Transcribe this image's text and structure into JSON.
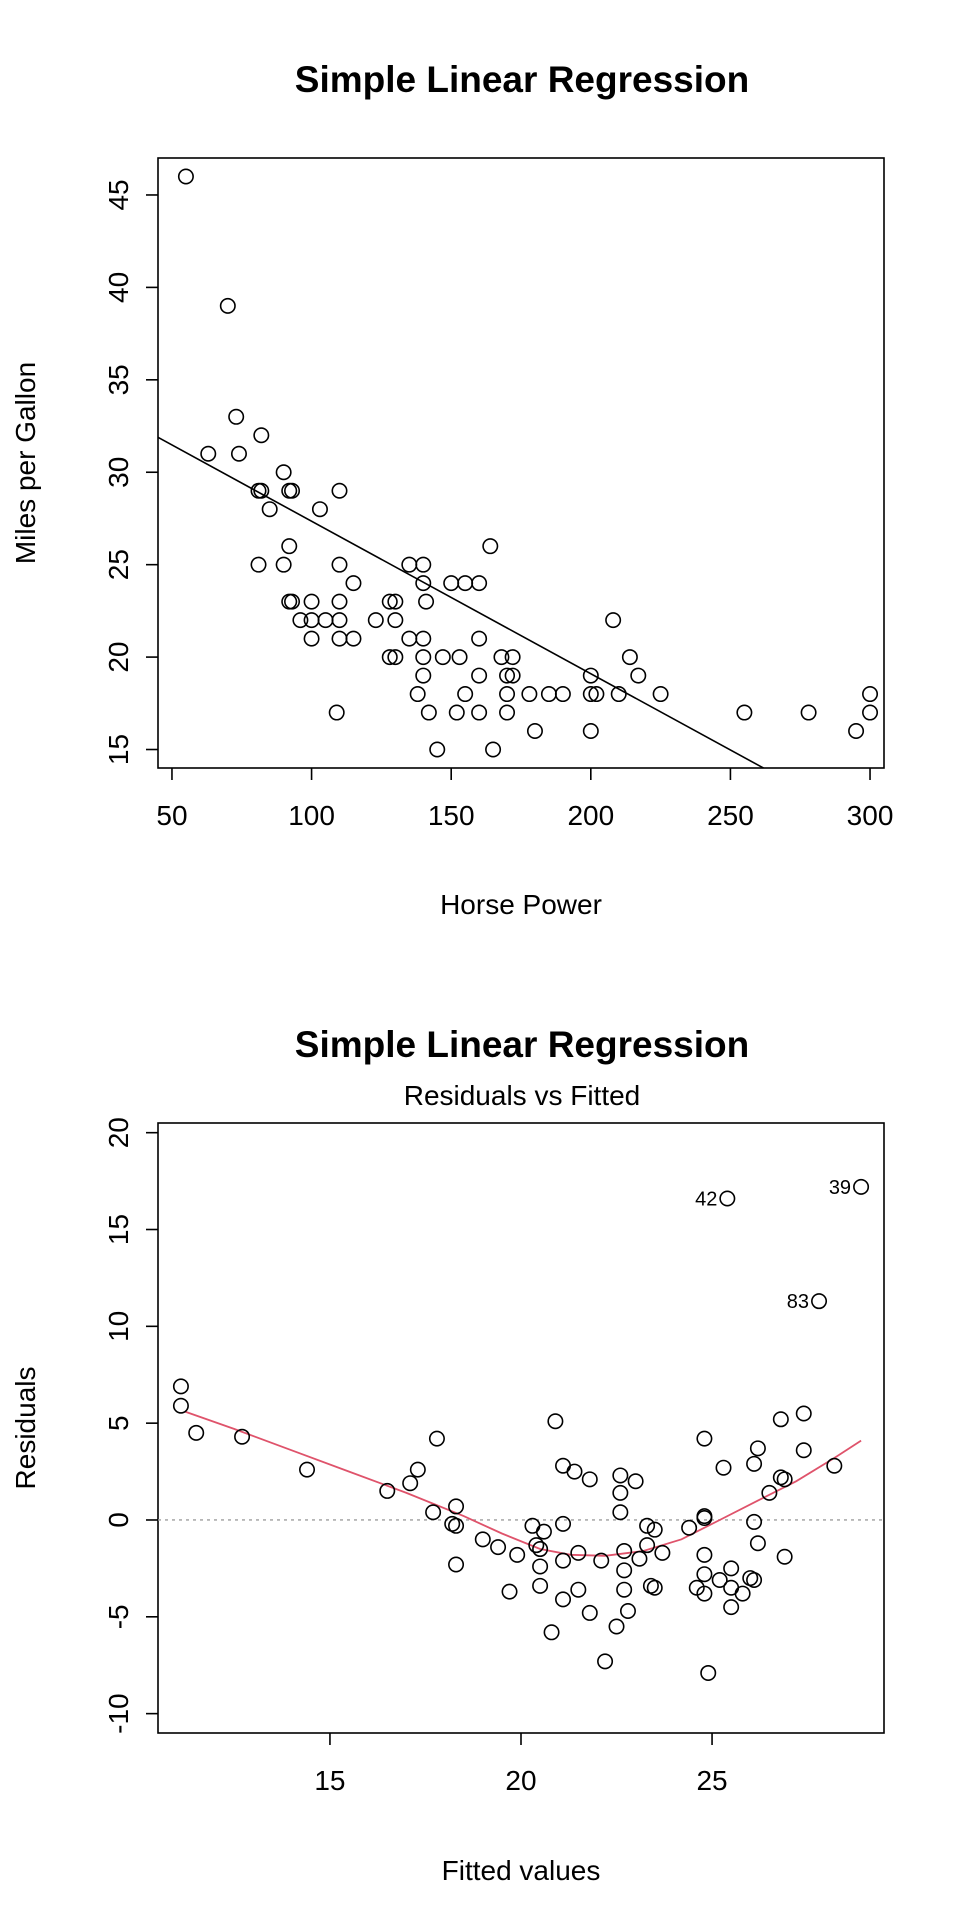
{
  "chart_data": [
    {
      "type": "scatter",
      "title": "Simple Linear Regression",
      "xlabel": "Horse Power",
      "ylabel": "Miles per Gallon",
      "xlim": [
        45,
        305
      ],
      "ylim": [
        14,
        47
      ],
      "xticks": [
        50,
        100,
        150,
        200,
        250,
        300
      ],
      "yticks": [
        15,
        20,
        25,
        30,
        35,
        40,
        45
      ],
      "regression_line": {
        "intercept": 35.6,
        "slope": -0.0825
      },
      "points": [
        [
          55,
          46
        ],
        [
          70,
          39
        ],
        [
          63,
          31
        ],
        [
          73,
          33
        ],
        [
          74,
          31
        ],
        [
          82,
          32
        ],
        [
          90,
          30
        ],
        [
          81,
          29
        ],
        [
          82,
          29
        ],
        [
          92,
          29
        ],
        [
          93,
          29
        ],
        [
          110,
          29
        ],
        [
          85,
          28
        ],
        [
          103,
          28
        ],
        [
          92,
          26
        ],
        [
          164,
          26
        ],
        [
          81,
          25
        ],
        [
          90,
          25
        ],
        [
          110,
          25
        ],
        [
          135,
          25
        ],
        [
          140,
          25
        ],
        [
          92,
          23
        ],
        [
          93,
          23
        ],
        [
          100,
          23
        ],
        [
          110,
          23
        ],
        [
          128,
          23
        ],
        [
          130,
          23
        ],
        [
          141,
          23
        ],
        [
          140,
          24
        ],
        [
          150,
          24
        ],
        [
          155,
          24
        ],
        [
          160,
          24
        ],
        [
          115,
          24
        ],
        [
          96,
          22
        ],
        [
          100,
          22
        ],
        [
          105,
          22
        ],
        [
          110,
          22
        ],
        [
          123,
          22
        ],
        [
          130,
          22
        ],
        [
          208,
          22
        ],
        [
          100,
          21
        ],
        [
          110,
          21
        ],
        [
          115,
          21
        ],
        [
          135,
          21
        ],
        [
          140,
          21
        ],
        [
          160,
          21
        ],
        [
          128,
          20
        ],
        [
          130,
          20
        ],
        [
          140,
          20
        ],
        [
          147,
          20
        ],
        [
          153,
          20
        ],
        [
          168,
          20
        ],
        [
          172,
          20
        ],
        [
          214,
          20
        ],
        [
          140,
          19
        ],
        [
          160,
          19
        ],
        [
          170,
          19
        ],
        [
          172,
          19
        ],
        [
          200,
          19
        ],
        [
          217,
          19
        ],
        [
          138,
          18
        ],
        [
          155,
          18
        ],
        [
          170,
          18
        ],
        [
          178,
          18
        ],
        [
          185,
          18
        ],
        [
          190,
          18
        ],
        [
          200,
          18
        ],
        [
          202,
          18
        ],
        [
          210,
          18
        ],
        [
          225,
          18
        ],
        [
          300,
          18
        ],
        [
          109,
          17
        ],
        [
          142,
          17
        ],
        [
          152,
          17
        ],
        [
          160,
          17
        ],
        [
          170,
          17
        ],
        [
          255,
          17
        ],
        [
          278,
          17
        ],
        [
          300,
          17
        ],
        [
          180,
          16
        ],
        [
          200,
          16
        ],
        [
          295,
          16
        ],
        [
          145,
          15
        ],
        [
          165,
          15
        ]
      ]
    },
    {
      "type": "scatter",
      "title": "Simple Linear Regression",
      "subtitle": "Residuals vs Fitted",
      "xlabel": "Fitted values",
      "ylabel": "Residuals",
      "xlim": [
        10.5,
        29.5
      ],
      "ylim": [
        -11,
        20.5
      ],
      "xticks": [
        15,
        20,
        25
      ],
      "yticks": [
        -10,
        -5,
        0,
        5,
        10,
        15,
        20
      ],
      "reference_line_y": 0,
      "labeled_points": [
        {
          "label": "42",
          "x": 25.4,
          "y": 16.6
        },
        {
          "label": "39",
          "x": 28.9,
          "y": 17.2
        },
        {
          "label": "83",
          "x": 27.8,
          "y": 11.3
        }
      ],
      "smooth_curve": [
        [
          11.2,
          5.6
        ],
        [
          12.5,
          4.7
        ],
        [
          14,
          3.6
        ],
        [
          15.5,
          2.5
        ],
        [
          17,
          1.4
        ],
        [
          18.5,
          0.2
        ],
        [
          19.5,
          -0.7
        ],
        [
          20.5,
          -1.5
        ],
        [
          21.3,
          -1.8
        ],
        [
          22.2,
          -1.85
        ],
        [
          23.2,
          -1.6
        ],
        [
          24.2,
          -1.0
        ],
        [
          25.2,
          0.0
        ],
        [
          26.2,
          1.0
        ],
        [
          27.2,
          2.0
        ],
        [
          28.2,
          3.2
        ],
        [
          28.9,
          4.1
        ]
      ],
      "points": [
        [
          11.1,
          6.9
        ],
        [
          11.1,
          5.9
        ],
        [
          11.5,
          4.5
        ],
        [
          12.7,
          4.3
        ],
        [
          14.4,
          2.6
        ],
        [
          16.5,
          1.5
        ],
        [
          17.1,
          1.9
        ],
        [
          17.3,
          2.6
        ],
        [
          17.7,
          0.4
        ],
        [
          17.8,
          4.2
        ],
        [
          18.2,
          -0.2
        ],
        [
          18.3,
          0.7
        ],
        [
          18.3,
          -0.3
        ],
        [
          18.3,
          -2.3
        ],
        [
          19.0,
          -1.0
        ],
        [
          19.4,
          -1.4
        ],
        [
          19.7,
          -3.7
        ],
        [
          19.9,
          -1.8
        ],
        [
          20.3,
          -0.3
        ],
        [
          20.4,
          -1.3
        ],
        [
          20.5,
          -1.5
        ],
        [
          20.5,
          -2.4
        ],
        [
          20.5,
          -3.4
        ],
        [
          20.6,
          -0.6
        ],
        [
          20.8,
          -5.8
        ],
        [
          20.9,
          5.1
        ],
        [
          21.1,
          2.8
        ],
        [
          21.1,
          -0.2
        ],
        [
          21.1,
          -2.1
        ],
        [
          21.1,
          -4.1
        ],
        [
          21.4,
          2.5
        ],
        [
          21.5,
          -1.7
        ],
        [
          21.5,
          -3.6
        ],
        [
          21.8,
          2.1
        ],
        [
          21.8,
          -4.8
        ],
        [
          22.1,
          -2.1
        ],
        [
          22.2,
          -7.3
        ],
        [
          22.5,
          -5.5
        ],
        [
          22.6,
          0.4
        ],
        [
          22.6,
          1.4
        ],
        [
          22.6,
          2.3
        ],
        [
          22.7,
          -1.6
        ],
        [
          22.7,
          -2.6
        ],
        [
          22.7,
          -3.6
        ],
        [
          22.8,
          -4.7
        ],
        [
          23.0,
          2.0
        ],
        [
          23.1,
          -2.0
        ],
        [
          23.3,
          -0.3
        ],
        [
          23.3,
          -1.3
        ],
        [
          23.4,
          -3.4
        ],
        [
          23.5,
          -3.5
        ],
        [
          23.5,
          -0.5
        ],
        [
          23.7,
          -1.7
        ],
        [
          24.4,
          -0.4
        ],
        [
          24.6,
          -3.5
        ],
        [
          24.8,
          4.2
        ],
        [
          24.8,
          0.2
        ],
        [
          24.8,
          0.1
        ],
        [
          24.8,
          -1.8
        ],
        [
          24.8,
          -2.8
        ],
        [
          24.8,
          -3.8
        ],
        [
          24.9,
          -7.9
        ],
        [
          25.2,
          -3.1
        ],
        [
          25.3,
          2.7
        ],
        [
          25.4,
          16.6
        ],
        [
          25.5,
          -2.5
        ],
        [
          25.5,
          -3.5
        ],
        [
          25.5,
          -4.5
        ],
        [
          25.8,
          -3.8
        ],
        [
          26.0,
          -3.0
        ],
        [
          26.1,
          -3.1
        ],
        [
          26.1,
          2.9
        ],
        [
          26.1,
          -0.1
        ],
        [
          26.2,
          3.7
        ],
        [
          26.2,
          -1.2
        ],
        [
          26.5,
          1.4
        ],
        [
          26.8,
          5.2
        ],
        [
          26.8,
          2.2
        ],
        [
          26.9,
          2.1
        ],
        [
          26.9,
          -1.9
        ],
        [
          27.4,
          5.5
        ],
        [
          27.4,
          3.6
        ],
        [
          27.8,
          11.3
        ],
        [
          28.2,
          2.8
        ],
        [
          28.9,
          17.2
        ]
      ]
    }
  ]
}
